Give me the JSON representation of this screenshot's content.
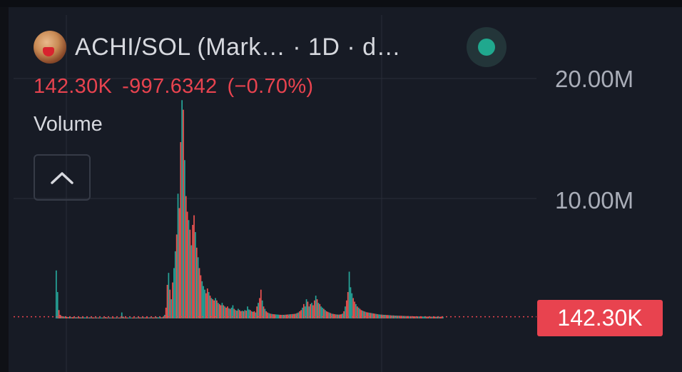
{
  "header": {
    "title": "ACHI/SOL (Mark… · 1D · d…",
    "avatar_icon": "achi-token-avatar",
    "status_color": "#20a88e"
  },
  "price": {
    "last": "142.30K",
    "change": "-997.6342",
    "change_pct": "(−0.70%)",
    "color": "#e8434f"
  },
  "indicator": {
    "label": "Volume",
    "collapse_icon": "chevron-up-icon"
  },
  "y_axis": {
    "ticks": [
      "20.00M",
      "10.00M"
    ],
    "last_value_badge": "142.30K"
  },
  "colors": {
    "up": "#26a69a",
    "down": "#ef5350",
    "grid": "#2a2e39"
  },
  "chart_data": {
    "type": "bar",
    "title": "",
    "xlabel": "",
    "ylabel": "",
    "ylim": [
      0,
      21000000
    ],
    "last_value": 142300,
    "grid": true,
    "values": [
      4000000,
      2200000,
      700000,
      300000,
      200000,
      180000,
      150000,
      140000,
      130000,
      120000,
      120000,
      110000,
      110000,
      100000,
      100000,
      100000,
      100000,
      100000,
      95000,
      95000,
      95000,
      90000,
      90000,
      90000,
      90000,
      90000,
      85000,
      85000,
      85000,
      80000,
      80000,
      80000,
      80000,
      80000,
      80000,
      80000,
      80000,
      120000,
      80000,
      80000,
      80000,
      80000,
      80000,
      80000,
      80000,
      80000,
      80000,
      80000,
      80000,
      500000,
      150000,
      80000,
      80000,
      80000,
      80000,
      80000,
      80000,
      80000,
      80000,
      80000,
      80000,
      90000,
      90000,
      90000,
      90000,
      90000,
      90000,
      90000,
      90000,
      90000,
      90000,
      90000,
      90000,
      90000,
      90000,
      100000,
      100000,
      100000,
      100000,
      100000,
      150000,
      300000,
      900000,
      2800000,
      3800000,
      2400000,
      1600000,
      3000000,
      4200000,
      5600000,
      7000000,
      10400000,
      9200000,
      14700000,
      18200000,
      17400000,
      13200000,
      10200000,
      8900000,
      8200000,
      7400000,
      6100000,
      7800000,
      8600000,
      7200000,
      5900000,
      5100000,
      4200000,
      3600000,
      3100000,
      2700000,
      2400000,
      2100000,
      2500000,
      2200000,
      1900000,
      1700000,
      1600000,
      1500000,
      1700000,
      1500000,
      1300000,
      1200000,
      1100000,
      1300000,
      1100000,
      1000000,
      900000,
      1000000,
      850000,
      800000,
      900000,
      1100000,
      800000,
      700000,
      650000,
      800000,
      700000,
      600000,
      650000,
      600000,
      700000,
      650000,
      1000000,
      750000,
      700000,
      600000,
      550000,
      600000,
      500000,
      1000000,
      1300000,
      1700000,
      2400000,
      1500000,
      1000000,
      800000,
      600000,
      500000,
      450000,
      400000,
      380000,
      360000,
      350000,
      340000,
      330000,
      320000,
      310000,
      300000,
      300000,
      300000,
      310000,
      320000,
      330000,
      340000,
      350000,
      360000,
      370000,
      380000,
      400000,
      450000,
      500000,
      600000,
      700000,
      900000,
      1200000,
      1000000,
      1600000,
      1400000,
      1000000,
      1200000,
      1300000,
      1100000,
      1500000,
      1900000,
      1600000,
      1300000,
      1200000,
      1000000,
      900000,
      800000,
      700000,
      600000,
      550000,
      500000,
      450000,
      400000,
      380000,
      360000,
      340000,
      330000,
      320000,
      330000,
      350000,
      400000,
      600000,
      1000000,
      1500000,
      2200000,
      3900000,
      2600000,
      2100000,
      1700000,
      1400000,
      1200000,
      1000000,
      900000,
      800000,
      700000,
      650000,
      600000,
      560000,
      520000,
      500000,
      480000,
      460000,
      440000,
      420000,
      400000,
      380000,
      360000,
      340000,
      330000,
      320000,
      310000,
      300000,
      300000,
      290000,
      280000,
      270000,
      260000,
      250000,
      250000,
      240000,
      240000,
      230000,
      230000,
      220000,
      220000,
      210000,
      210000,
      200000,
      200000,
      200000,
      190000,
      190000,
      185000,
      180000,
      178000,
      175000,
      172000,
      170000,
      168000,
      165000,
      163000,
      160000,
      158000,
      156000,
      154000,
      152000,
      150000,
      149000,
      148000,
      147000,
      146000,
      145000,
      144000,
      143500,
      143000,
      142300
    ],
    "directions": "mixed up/down candles (teal = up, red = down)"
  }
}
